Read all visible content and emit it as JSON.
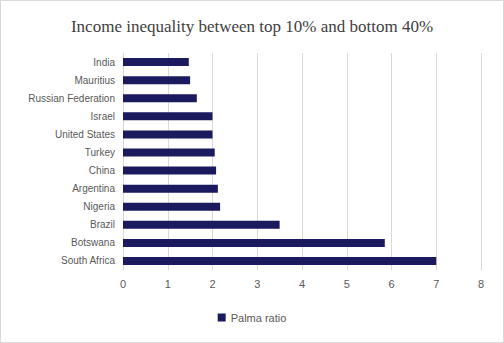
{
  "chart_data": {
    "type": "bar",
    "orientation": "horizontal",
    "title": "Income inequality between top 10% and bottom 40%",
    "categories": [
      "India",
      "Mauritius",
      "Russian Federation",
      "Israel",
      "United States",
      "Turkey",
      "China",
      "Argentina",
      "Nigeria",
      "Brazil",
      "Botswana",
      "South Africa"
    ],
    "series": [
      {
        "name": "Palma ratio",
        "color": "#1b1a5e",
        "values": [
          1.47,
          1.5,
          1.65,
          2.0,
          2.0,
          2.05,
          2.08,
          2.12,
          2.17,
          3.5,
          5.85,
          7.0
        ]
      }
    ],
    "xlim": [
      0,
      8
    ],
    "xticks": [
      0,
      1,
      2,
      3,
      4,
      5,
      6,
      7,
      8
    ],
    "grid": true,
    "legend": "bottom"
  }
}
